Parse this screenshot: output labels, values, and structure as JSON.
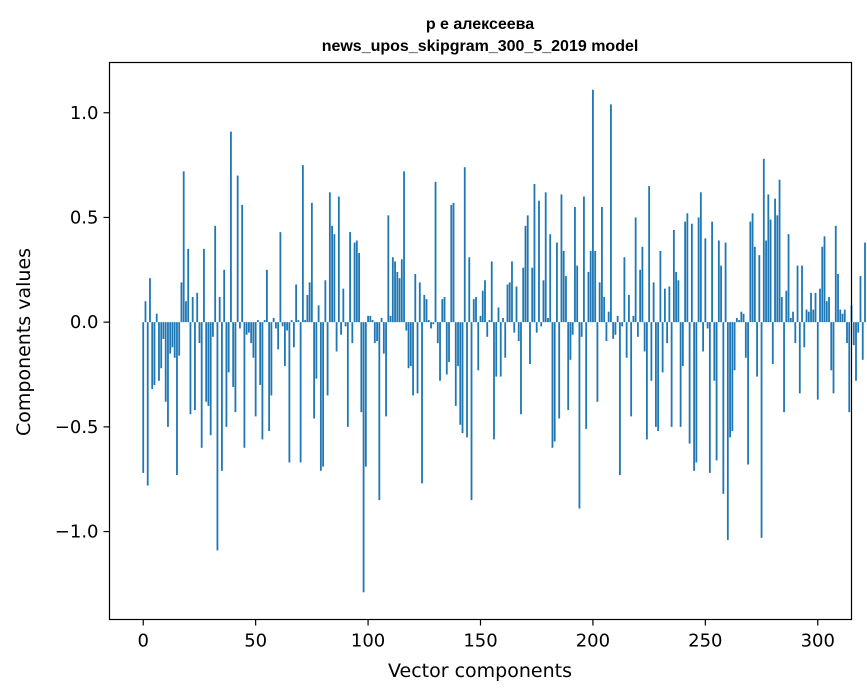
{
  "chart_data": {
    "type": "bar",
    "title": "р е алексеева",
    "subtitle": "news_upos_skipgram_300_5_2019 model",
    "xlabel": "Vector components",
    "ylabel": "Components values",
    "xlim": [
      -15,
      315
    ],
    "ylim": [
      -1.42,
      1.24
    ],
    "xticks": [
      0,
      50,
      100,
      150,
      200,
      250,
      300
    ],
    "xtick_labels": [
      "0",
      "50",
      "100",
      "150",
      "200",
      "250",
      "300"
    ],
    "yticks": [
      -1.0,
      -0.5,
      0.0,
      0.5,
      1.0
    ],
    "ytick_labels": [
      "−1.0",
      "−0.5",
      "0.0",
      "0.5",
      "1.0"
    ],
    "bar_color": "#1f77b4",
    "grid": false,
    "values": [
      -0.72,
      0.1,
      -0.78,
      0.21,
      -0.32,
      -0.3,
      0.04,
      -0.28,
      -0.22,
      -0.08,
      -0.38,
      -0.5,
      -0.15,
      -0.12,
      -0.17,
      -0.73,
      -0.16,
      0.19,
      0.72,
      0.1,
      0.35,
      -0.44,
      0.12,
      -0.42,
      0.14,
      -0.1,
      -0.6,
      0.35,
      -0.38,
      -0.4,
      -0.54,
      -0.07,
      0.46,
      -1.09,
      0.12,
      -0.71,
      0.25,
      -0.5,
      -0.24,
      0.91,
      -0.31,
      -0.43,
      0.7,
      -0.03,
      0.56,
      -0.6,
      -0.06,
      -0.05,
      -0.1,
      -0.17,
      -0.45,
      0.01,
      -0.3,
      -0.56,
      0.01,
      0.25,
      -0.52,
      -0.35,
      0.02,
      -0.03,
      -0.13,
      0.43,
      -0.02,
      -0.21,
      -0.04,
      -0.67,
      0.01,
      -0.12,
      0.18,
      0.01,
      -0.67,
      0.75,
      0.01,
      0.13,
      0.19,
      0.57,
      -0.46,
      -0.27,
      0.08,
      -0.71,
      -0.69,
      0.2,
      -0.35,
      0.62,
      0.46,
      0.42,
      -0.14,
      0.6,
      -0.06,
      0.16,
      -0.02,
      -0.5,
      0.43,
      -0.1,
      0.38,
      0.39,
      0.33,
      -0.43,
      -1.29,
      -0.69,
      0.03,
      0.03,
      0.01,
      -0.1,
      -0.09,
      -0.85,
      0.02,
      -0.15,
      -0.45,
      0.51,
      0.03,
      0.31,
      0.29,
      0.24,
      0.21,
      0.3,
      0.72,
      -0.04,
      -0.22,
      -0.21,
      -0.35,
      0.23,
      -0.34,
      0.19,
      -0.77,
      0.13,
      0.11,
      0.01,
      -0.03,
      -0.01,
      0.67,
      -0.1,
      -0.28,
      0.11,
      0.12,
      -0.25,
      -0.19,
      0.56,
      0.57,
      -0.4,
      -0.21,
      -0.49,
      -0.53,
      0.74,
      -0.55,
      0.31,
      -0.85,
      0.11,
      0.12,
      -0.23,
      0.03,
      0.15,
      0.2,
      -0.07,
      0.01,
      0.29,
      -0.56,
      -0.26,
      0.07,
      -0.26,
      0.02,
      -0.17,
      0.18,
      0.19,
      0.29,
      -0.05,
      0.17,
      -0.09,
      -0.44,
      0.26,
      0.46,
      0.51,
      -0.2,
      0.26,
      0.66,
      -0.05,
      0.58,
      -0.02,
      0.2,
      0.62,
      0.02,
      0.42,
      -0.6,
      -0.57,
      0.38,
      -0.46,
      0.61,
      0.34,
      0.22,
      -0.42,
      -0.18,
      -0.06,
      0.55,
      0.27,
      -0.89,
      -0.07,
      0.6,
      -0.51,
      0.24,
      0.34,
      1.11,
      0.34,
      -0.38,
      0.19,
      0.55,
      0.12,
      -0.09,
      0.05,
      1.04,
      -0.08,
      -0.06,
      0.03,
      -0.73,
      -0.02,
      0.31,
      -0.17,
      0.13,
      -0.45,
      0.03,
      0.5,
      -0.07,
      0.25,
      0.36,
      -0.14,
      -0.56,
      0.65,
      -0.28,
      0.19,
      -0.5,
      -0.52,
      0.34,
      -0.24,
      0.16,
      -0.1,
      0.17,
      -0.5,
      0.44,
      0.24,
      0.2,
      -0.5,
      -0.21,
      0.48,
      0.52,
      -0.58,
      0.47,
      -0.71,
      -0.67,
      0.5,
      0.62,
      -0.14,
      0.4,
      -0.03,
      -0.72,
      0.48,
      -0.28,
      -0.66,
      0.39,
      0.27,
      -0.82,
      0.38,
      -1.04,
      -0.55,
      -0.52,
      -0.23,
      0.02,
      0.01,
      0.05,
      0.04,
      -0.17,
      -0.68,
      0.48,
      0.52,
      0.36,
      -0.26,
      0.32,
      -1.03,
      0.78,
      0.39,
      0.61,
      0.49,
      -0.2,
      0.59,
      0.51,
      0.68,
      0.12,
      -0.43,
      0.15,
      0.42,
      0.02,
      0.05,
      -0.1,
      0.27,
      -0.34,
      0.27,
      -0.12,
      0.06,
      0.05,
      0.14,
      0.06,
      0.14,
      -0.37,
      0.16,
      0.36,
      0.41,
      0.1,
      0.12,
      -0.23,
      -0.34,
      0.46,
      0.23,
      0.06,
      0.04,
      0.06,
      -0.1,
      -0.43,
      0.08,
      -0.11,
      -0.28,
      -0.05,
      0.22,
      -0.18,
      0.38
    ]
  }
}
